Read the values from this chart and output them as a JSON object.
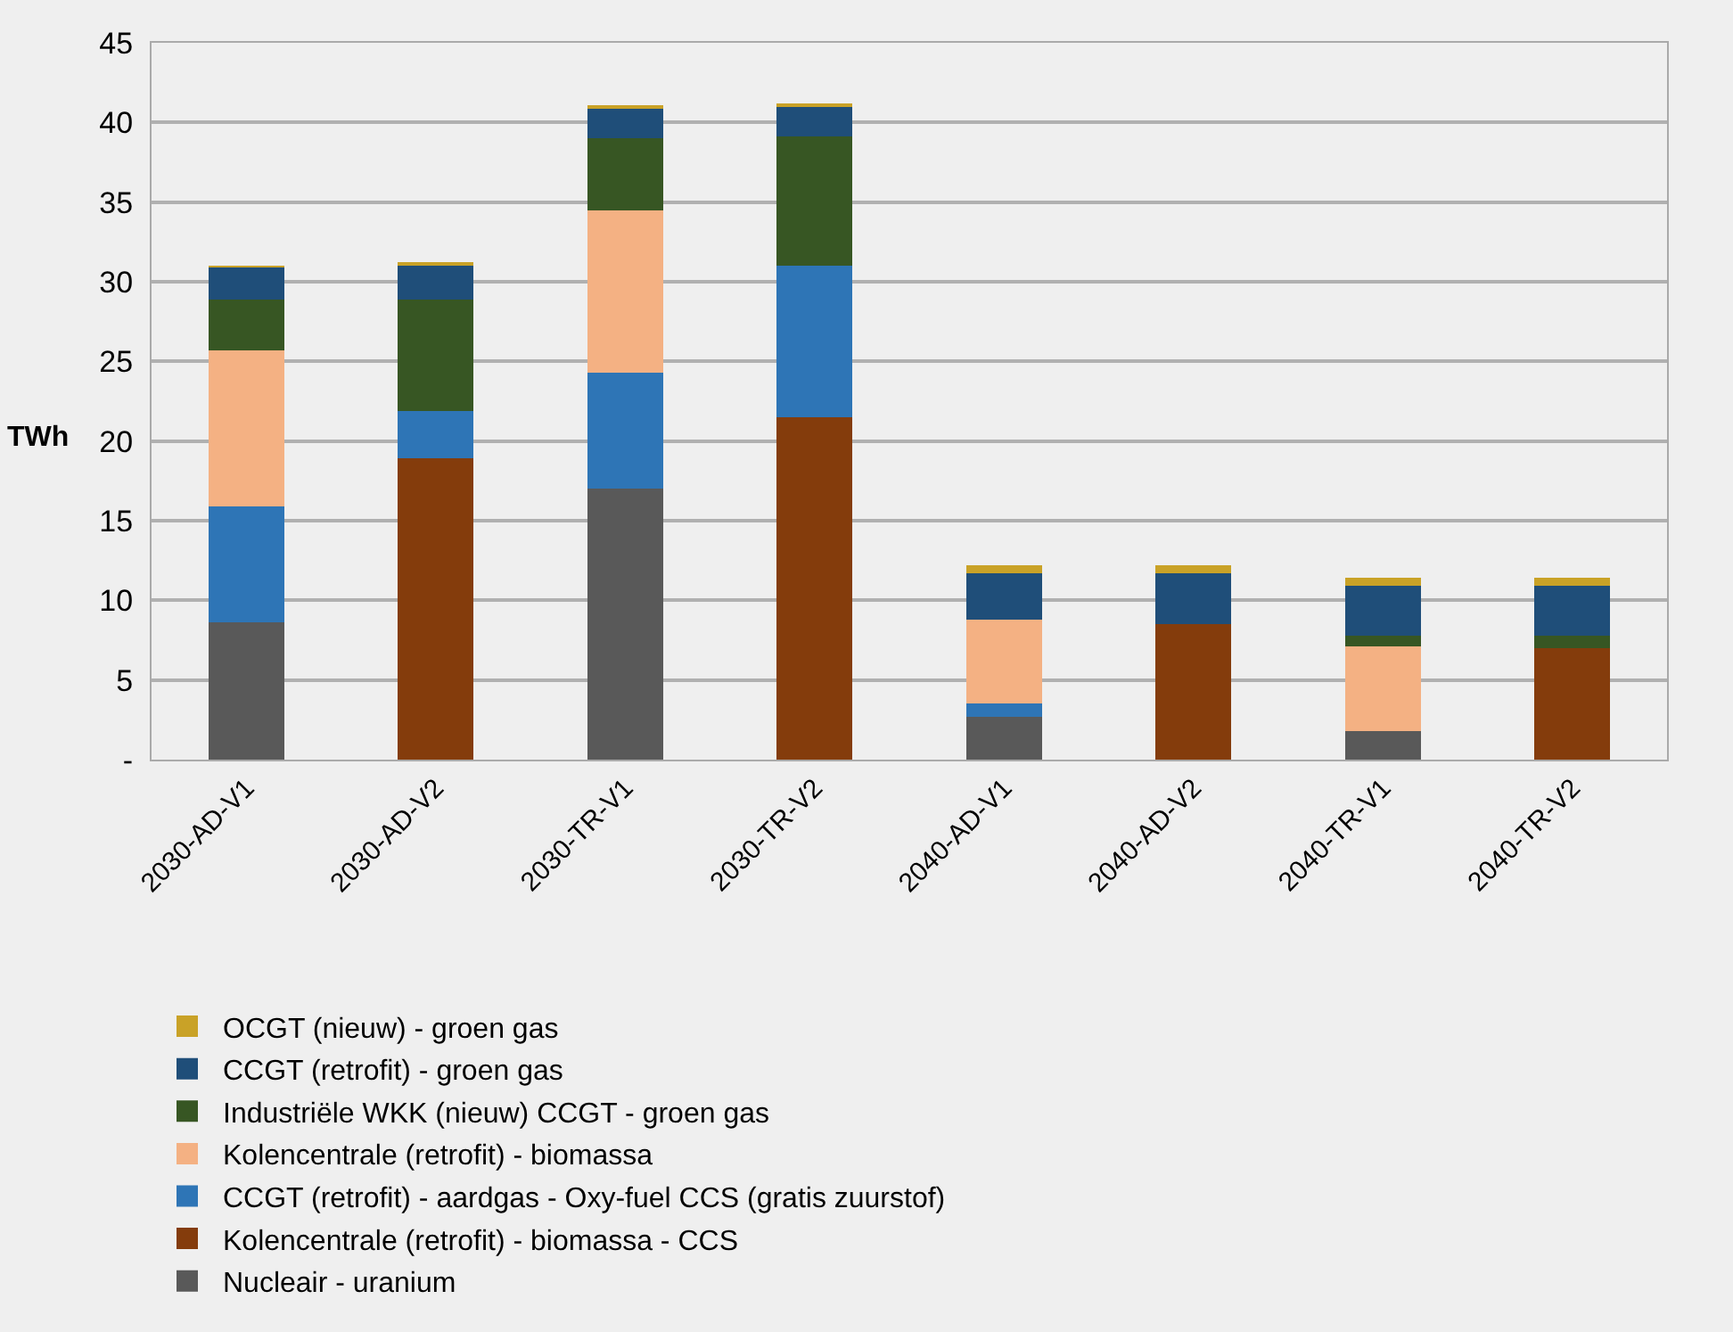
{
  "chart_data": {
    "type": "bar",
    "stacked": true,
    "ylabel": "TWh",
    "categories": [
      "2030-AD-V1",
      "2030-AD-V2",
      "2030-TR-V1",
      "2030-TR-V2",
      "2040-AD-V1",
      "2040-AD-V2",
      "2040-TR-V1",
      "2040-TR-V2"
    ],
    "series": [
      {
        "name": "Nucleair - uranium",
        "color": "#595959",
        "values": [
          8.6,
          0,
          17.0,
          0,
          2.7,
          0,
          1.8,
          0
        ]
      },
      {
        "name": "Kolencentrale (retrofit) - biomassa - CCS",
        "color": "#843c0c",
        "values": [
          0,
          18.9,
          0,
          21.5,
          0,
          8.5,
          0,
          7.0
        ]
      },
      {
        "name": "CCGT (retrofit) - aardgas - Oxy-fuel CCS (gratis zuurstof)",
        "color": "#2e75b6",
        "values": [
          7.3,
          3.0,
          7.3,
          9.5,
          0.8,
          0,
          0,
          0
        ]
      },
      {
        "name": "Kolencentrale (retrofit) - biomassa",
        "color": "#f4b183",
        "values": [
          9.8,
          0,
          10.2,
          0,
          5.3,
          0,
          5.3,
          0
        ]
      },
      {
        "name": "Industriële WKK (nieuw) CCGT - groen gas",
        "color": "#375623",
        "values": [
          3.2,
          7.0,
          4.5,
          8.1,
          0,
          0,
          0.7,
          0.8
        ]
      },
      {
        "name": "CCGT (retrofit) - groen gas",
        "color": "#1f4e79",
        "values": [
          2.0,
          2.2,
          1.9,
          1.9,
          2.9,
          3.2,
          3.1,
          3.1
        ]
      },
      {
        "name": "OCGT (nieuw) - groen gas",
        "color": "#c9a227",
        "values": [
          0.1,
          0.1,
          0.1,
          0.1,
          0.5,
          0.5,
          0.5,
          0.5
        ]
      }
    ],
    "ylim": [
      0,
      45
    ],
    "yticks": [
      {
        "value": 0,
        "label": "-"
      },
      5,
      10,
      15,
      20,
      25,
      30,
      35,
      40,
      45
    ],
    "grid": "y",
    "legend": "bottom"
  }
}
